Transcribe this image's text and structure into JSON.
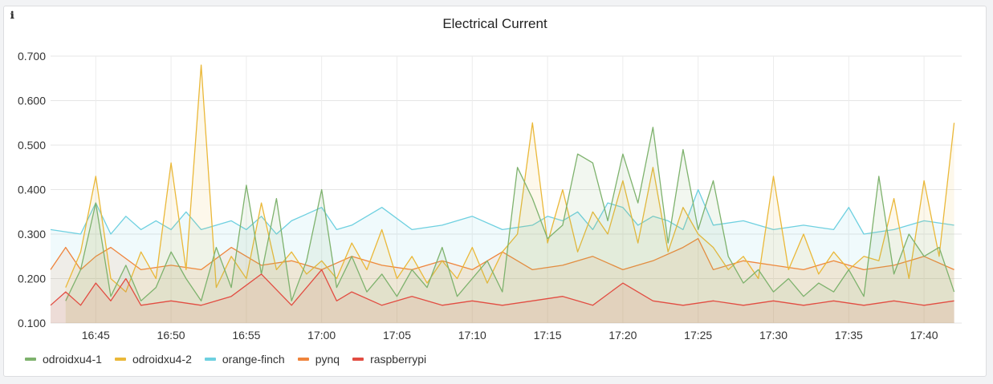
{
  "panel": {
    "info_icon": "info-icon",
    "title": "Electrical Current"
  },
  "chart_data": {
    "type": "line",
    "title": "Electrical Current",
    "xlabel": "",
    "ylabel": "",
    "ylim": [
      0.1,
      0.7
    ],
    "yticks": [
      "0.100",
      "0.200",
      "0.300",
      "0.400",
      "0.500",
      "0.600",
      "0.700"
    ],
    "ytick_values": [
      0.1,
      0.2,
      0.3,
      0.4,
      0.5,
      0.6,
      0.7
    ],
    "xlim": [
      "16:42:00",
      "17:42:30"
    ],
    "xticks": [
      "16:45",
      "16:50",
      "16:55",
      "17:00",
      "17:05",
      "17:10",
      "17:15",
      "17:20",
      "17:25",
      "17:30",
      "17:35",
      "17:40"
    ],
    "grid": true,
    "legend_position": "bottom",
    "series": [
      {
        "name": "odroidxu4-1",
        "color": "#7eb26d",
        "x": [
          "16:43",
          "16:44",
          "16:45",
          "16:46",
          "16:47",
          "16:48",
          "16:49",
          "16:50",
          "16:51",
          "16:52",
          "16:53",
          "16:54",
          "16:55",
          "16:56",
          "16:57",
          "16:58",
          "16:59",
          "17:00",
          "17:01",
          "17:02",
          "17:03",
          "17:04",
          "17:05",
          "17:06",
          "17:07",
          "17:08",
          "17:09",
          "17:10",
          "17:11",
          "17:12",
          "17:13",
          "17:14",
          "17:15",
          "17:16",
          "17:17",
          "17:18",
          "17:19",
          "17:20",
          "17:21",
          "17:22",
          "17:23",
          "17:24",
          "17:25",
          "17:26",
          "17:27",
          "17:28",
          "17:29",
          "17:30",
          "17:31",
          "17:32",
          "17:33",
          "17:34",
          "17:35",
          "17:36",
          "17:37",
          "17:38",
          "17:39",
          "17:40",
          "17:41",
          "17:42"
        ],
        "values": [
          0.15,
          0.22,
          0.37,
          0.16,
          0.23,
          0.15,
          0.18,
          0.26,
          0.2,
          0.15,
          0.27,
          0.18,
          0.41,
          0.21,
          0.38,
          0.15,
          0.24,
          0.4,
          0.18,
          0.25,
          0.17,
          0.21,
          0.16,
          0.22,
          0.18,
          0.27,
          0.16,
          0.2,
          0.24,
          0.17,
          0.45,
          0.38,
          0.29,
          0.32,
          0.48,
          0.46,
          0.33,
          0.48,
          0.37,
          0.54,
          0.28,
          0.49,
          0.31,
          0.42,
          0.25,
          0.19,
          0.22,
          0.17,
          0.2,
          0.16,
          0.19,
          0.17,
          0.22,
          0.16,
          0.43,
          0.21,
          0.3,
          0.25,
          0.27,
          0.17
        ]
      },
      {
        "name": "odroidxu4-2",
        "color": "#eab839",
        "x": [
          "16:43",
          "16:44",
          "16:45",
          "16:46",
          "16:47",
          "16:48",
          "16:49",
          "16:50",
          "16:51",
          "16:52",
          "16:53",
          "16:54",
          "16:55",
          "16:56",
          "16:57",
          "16:58",
          "16:59",
          "17:00",
          "17:01",
          "17:02",
          "17:03",
          "17:04",
          "17:05",
          "17:06",
          "17:07",
          "17:08",
          "17:09",
          "17:10",
          "17:11",
          "17:12",
          "17:13",
          "17:14",
          "17:15",
          "17:16",
          "17:17",
          "17:18",
          "17:19",
          "17:20",
          "17:21",
          "17:22",
          "17:23",
          "17:24",
          "17:25",
          "17:26",
          "17:27",
          "17:28",
          "17:29",
          "17:30",
          "17:31",
          "17:32",
          "17:33",
          "17:34",
          "17:35",
          "17:36",
          "17:37",
          "17:38",
          "17:39",
          "17:40",
          "17:41",
          "17:42"
        ],
        "values": [
          0.18,
          0.26,
          0.43,
          0.2,
          0.17,
          0.26,
          0.2,
          0.46,
          0.22,
          0.68,
          0.18,
          0.25,
          0.2,
          0.37,
          0.22,
          0.26,
          0.21,
          0.24,
          0.2,
          0.28,
          0.22,
          0.31,
          0.2,
          0.25,
          0.19,
          0.24,
          0.2,
          0.27,
          0.19,
          0.26,
          0.3,
          0.55,
          0.28,
          0.4,
          0.26,
          0.35,
          0.3,
          0.42,
          0.28,
          0.45,
          0.26,
          0.36,
          0.3,
          0.27,
          0.22,
          0.25,
          0.2,
          0.43,
          0.22,
          0.3,
          0.21,
          0.26,
          0.22,
          0.25,
          0.24,
          0.38,
          0.2,
          0.42,
          0.25,
          0.55
        ]
      },
      {
        "name": "orange-finch",
        "color": "#6ed0e0",
        "x": [
          "16:42",
          "16:44",
          "16:45",
          "16:46",
          "16:47",
          "16:48",
          "16:49",
          "16:50",
          "16:51",
          "16:52",
          "16:54",
          "16:55",
          "16:56",
          "16:57",
          "16:58",
          "17:00",
          "17:01",
          "17:02",
          "17:04",
          "17:06",
          "17:08",
          "17:10",
          "17:12",
          "17:14",
          "17:15",
          "17:16",
          "17:17",
          "17:18",
          "17:19",
          "17:20",
          "17:21",
          "17:22",
          "17:23",
          "17:24",
          "17:25",
          "17:26",
          "17:28",
          "17:30",
          "17:32",
          "17:34",
          "17:35",
          "17:36",
          "17:38",
          "17:40",
          "17:42"
        ],
        "values": [
          0.31,
          0.3,
          0.37,
          0.3,
          0.34,
          0.31,
          0.33,
          0.31,
          0.35,
          0.31,
          0.33,
          0.31,
          0.34,
          0.3,
          0.33,
          0.36,
          0.31,
          0.32,
          0.36,
          0.31,
          0.32,
          0.34,
          0.31,
          0.32,
          0.34,
          0.33,
          0.35,
          0.31,
          0.37,
          0.36,
          0.32,
          0.34,
          0.33,
          0.31,
          0.4,
          0.32,
          0.33,
          0.31,
          0.32,
          0.31,
          0.36,
          0.3,
          0.31,
          0.33,
          0.32
        ]
      },
      {
        "name": "pynq",
        "color": "#ef843c",
        "x": [
          "16:42",
          "16:43",
          "16:44",
          "16:45",
          "16:46",
          "16:48",
          "16:50",
          "16:52",
          "16:54",
          "16:56",
          "16:58",
          "17:00",
          "17:02",
          "17:04",
          "17:06",
          "17:08",
          "17:10",
          "17:12",
          "17:14",
          "17:16",
          "17:18",
          "17:20",
          "17:22",
          "17:24",
          "17:25",
          "17:26",
          "17:28",
          "17:30",
          "17:32",
          "17:34",
          "17:36",
          "17:38",
          "17:40",
          "17:42"
        ],
        "values": [
          0.22,
          0.27,
          0.22,
          0.25,
          0.27,
          0.22,
          0.23,
          0.22,
          0.27,
          0.23,
          0.24,
          0.22,
          0.25,
          0.23,
          0.22,
          0.24,
          0.22,
          0.26,
          0.22,
          0.23,
          0.25,
          0.22,
          0.24,
          0.27,
          0.29,
          0.22,
          0.24,
          0.23,
          0.22,
          0.24,
          0.22,
          0.23,
          0.25,
          0.22
        ]
      },
      {
        "name": "raspberrypi",
        "color": "#e24d42",
        "x": [
          "16:42",
          "16:43",
          "16:44",
          "16:45",
          "16:46",
          "16:47",
          "16:48",
          "16:50",
          "16:52",
          "16:54",
          "16:56",
          "16:58",
          "17:00",
          "17:01",
          "17:02",
          "17:04",
          "17:06",
          "17:08",
          "17:10",
          "17:12",
          "17:14",
          "17:16",
          "17:18",
          "17:20",
          "17:22",
          "17:24",
          "17:26",
          "17:28",
          "17:30",
          "17:32",
          "17:34",
          "17:36",
          "17:38",
          "17:40",
          "17:42"
        ],
        "values": [
          0.14,
          0.17,
          0.14,
          0.19,
          0.15,
          0.2,
          0.14,
          0.15,
          0.14,
          0.16,
          0.21,
          0.14,
          0.22,
          0.15,
          0.17,
          0.14,
          0.16,
          0.14,
          0.15,
          0.14,
          0.15,
          0.16,
          0.14,
          0.19,
          0.15,
          0.14,
          0.15,
          0.14,
          0.15,
          0.14,
          0.15,
          0.14,
          0.15,
          0.14,
          0.15
        ]
      }
    ]
  }
}
